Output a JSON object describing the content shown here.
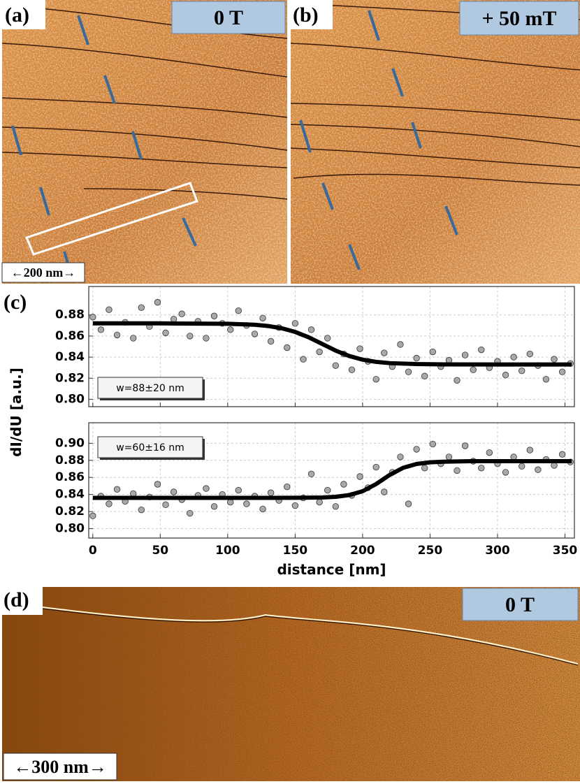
{
  "panels": {
    "a": {
      "label": "(a)",
      "field": "0 T",
      "scale": "←200 nm→"
    },
    "b": {
      "label": "(b)",
      "field": "+ 50 mT"
    },
    "c": {
      "label": "(c)"
    },
    "d": {
      "label": "(d)",
      "field": "0 T",
      "scale": "←300 nm→"
    }
  },
  "chart_data": [
    {
      "type": "scatter",
      "ylabel": "dI/dU [a.u.]",
      "annotation": "w=88±20 nm",
      "xlim": [
        -3,
        357
      ],
      "ylim": [
        0.793,
        0.907
      ],
      "xticks": [
        0,
        50,
        100,
        150,
        200,
        250,
        300,
        350
      ],
      "yticks": [
        {
          "value": 0.8,
          "label": "0.80"
        },
        0.82,
        0.84,
        0.86,
        0.88
      ],
      "grid": true,
      "series": [
        {
          "color": "#a9a9a9",
          "marker": "circle",
          "x": [
            0,
            6,
            12,
            18,
            24,
            30,
            36,
            42,
            48,
            54,
            60,
            66,
            72,
            78,
            84,
            90,
            96,
            102,
            108,
            114,
            120,
            126,
            132,
            138,
            144,
            150,
            156,
            162,
            168,
            174,
            180,
            186,
            192,
            198,
            204,
            210,
            216,
            222,
            228,
            234,
            240,
            246,
            252,
            258,
            264,
            270,
            276,
            282,
            288,
            294,
            300,
            306,
            312,
            318,
            324,
            330,
            336,
            342,
            348,
            354
          ],
          "values": [
            0.878,
            0.866,
            0.885,
            0.861,
            0.873,
            0.858,
            0.887,
            0.869,
            0.892,
            0.863,
            0.876,
            0.881,
            0.86,
            0.874,
            0.858,
            0.879,
            0.872,
            0.866,
            0.884,
            0.87,
            0.862,
            0.877,
            0.855,
            0.868,
            0.849,
            0.872,
            0.838,
            0.866,
            0.845,
            0.858,
            0.832,
            0.843,
            0.828,
            0.848,
            0.836,
            0.819,
            0.844,
            0.831,
            0.852,
            0.826,
            0.839,
            0.822,
            0.845,
            0.831,
            0.837,
            0.818,
            0.842,
            0.828,
            0.847,
            0.83,
            0.836,
            0.823,
            0.84,
            0.827,
            0.843,
            0.832,
            0.819,
            0.838,
            0.826,
            0.834
          ]
        },
        {
          "color": "#000000",
          "marker": "line",
          "x": [
            0,
            50,
            100,
            120,
            130,
            140,
            150,
            160,
            170,
            180,
            190,
            200,
            210,
            220,
            240,
            260,
            300,
            355
          ],
          "values": [
            0.872,
            0.872,
            0.8716,
            0.8707,
            0.8695,
            0.8674,
            0.8639,
            0.8588,
            0.8525,
            0.8462,
            0.8411,
            0.8376,
            0.8355,
            0.8343,
            0.8334,
            0.8331,
            0.833,
            0.833
          ]
        }
      ]
    },
    {
      "type": "scatter",
      "xlabel": "distance [nm]",
      "annotation": "w=60±16 nm",
      "xlim": [
        -3,
        357
      ],
      "ylim": [
        0.789,
        0.924
      ],
      "xticks": [
        0,
        50,
        100,
        150,
        200,
        250,
        300,
        350
      ],
      "yticks": [
        {
          "value": 0.8,
          "label": "0.80"
        },
        0.82,
        0.84,
        0.86,
        0.88,
        {
          "value": 0.9,
          "label": "0.90"
        }
      ],
      "grid": true,
      "series": [
        {
          "color": "#a9a9a9",
          "marker": "circle",
          "x": [
            0,
            6,
            12,
            18,
            24,
            30,
            36,
            42,
            48,
            54,
            60,
            66,
            72,
            78,
            84,
            90,
            96,
            102,
            108,
            114,
            120,
            126,
            132,
            138,
            144,
            150,
            156,
            162,
            168,
            174,
            180,
            186,
            192,
            198,
            204,
            210,
            216,
            222,
            228,
            234,
            240,
            246,
            252,
            258,
            264,
            270,
            276,
            282,
            288,
            294,
            300,
            306,
            312,
            318,
            324,
            330,
            336,
            342,
            348,
            354
          ],
          "values": [
            0.815,
            0.838,
            0.829,
            0.846,
            0.832,
            0.841,
            0.822,
            0.837,
            0.852,
            0.828,
            0.843,
            0.834,
            0.818,
            0.839,
            0.847,
            0.826,
            0.84,
            0.831,
            0.845,
            0.829,
            0.838,
            0.823,
            0.842,
            0.833,
            0.849,
            0.827,
            0.836,
            0.864,
            0.831,
            0.845,
            0.826,
            0.852,
            0.839,
            0.861,
            0.848,
            0.872,
            0.843,
            0.866,
            0.884,
            0.829,
            0.893,
            0.871,
            0.899,
            0.876,
            0.884,
            0.868,
            0.897,
            0.879,
            0.871,
            0.889,
            0.876,
            0.866,
            0.884,
            0.873,
            0.892,
            0.869,
            0.881,
            0.874,
            0.887,
            0.878
          ]
        },
        {
          "color": "#000000",
          "marker": "line",
          "x": [
            0,
            100,
            150,
            170,
            180,
            190,
            200,
            210,
            215,
            220,
            230,
            240,
            250,
            260,
            280,
            355
          ],
          "values": [
            0.836,
            0.836,
            0.8361,
            0.8365,
            0.8373,
            0.8393,
            0.8438,
            0.8522,
            0.8575,
            0.8628,
            0.8712,
            0.8757,
            0.8777,
            0.8784,
            0.879,
            0.879
          ]
        }
      ]
    }
  ]
}
